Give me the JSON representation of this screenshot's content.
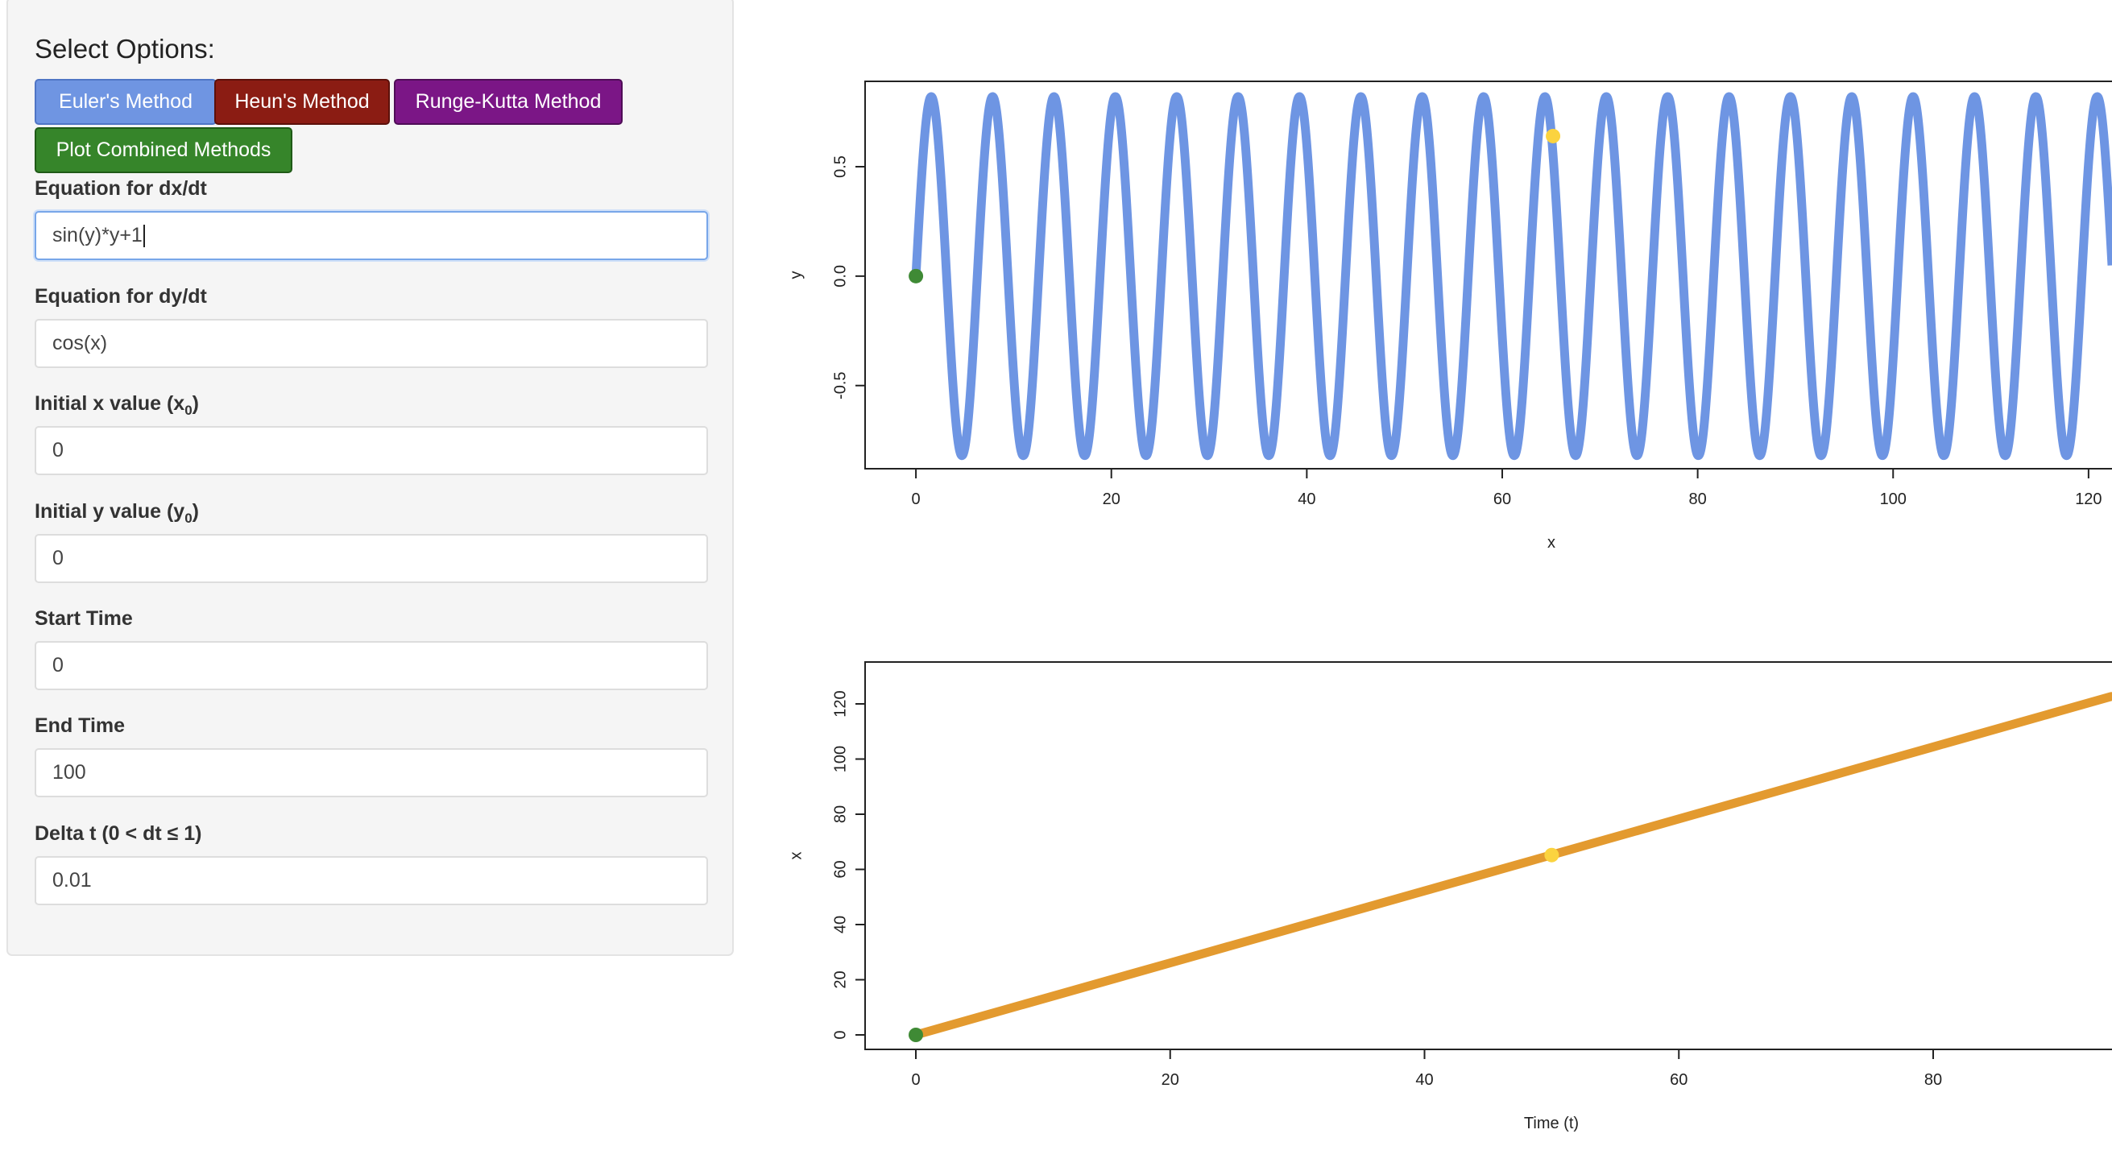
{
  "sidebar": {
    "title": "Select Options:",
    "buttons": {
      "euler": "Euler's Method",
      "heun": "Heun's Method",
      "rk": "Runge-Kutta Method",
      "combined": "Plot Combined Methods"
    },
    "fields": {
      "dxdt": {
        "label": "Equation for dx/dt",
        "value": "sin(y)*y+1"
      },
      "dydt": {
        "label": "Equation for dy/dt",
        "value": "cos(x)"
      },
      "x0": {
        "label_main": "Initial x value (x",
        "label_sub": "0",
        "label_end": ")",
        "value": "0"
      },
      "y0": {
        "label_main": "Initial y value (y",
        "label_sub": "0",
        "label_end": ")",
        "value": "0"
      },
      "start": {
        "label": "Start Time",
        "value": "0"
      },
      "end": {
        "label": "End Time",
        "value": "100"
      },
      "dt": {
        "label": "Delta t (0 < dt ≤ 1)",
        "value": "0.01"
      }
    }
  },
  "colors": {
    "euler": "#6f95e2",
    "heun": "#8b1c13",
    "rk": "#7b1686",
    "combined": "#36852a",
    "phase_line": "#6e95e3",
    "time_line": "#e39a2f",
    "start_point": "#3f8a35",
    "current_point": "#fbd33f"
  },
  "chart_data": [
    {
      "type": "line",
      "xlabel": "x",
      "ylabel": "y",
      "xticks": [
        0,
        20,
        40,
        60,
        80,
        100,
        120
      ],
      "yticks": [
        -0.5,
        0.0,
        0.5
      ],
      "ytick_labels": [
        "-0.5",
        "0.0",
        "0.5"
      ],
      "xlim": [
        -5.2,
        122.4
      ],
      "ylim": [
        -0.88,
        0.89
      ],
      "series": [
        {
          "description": "trajectory y vs x, oscillation amplitude ≈ 0.82 with period ≈ 6.28 in x",
          "amplitude": 0.82,
          "period": 6.28,
          "x_start": 0,
          "x_end": 122.4
        }
      ],
      "start_point": {
        "x": 0,
        "y": 0
      },
      "current_point": {
        "x": 65.2,
        "y": 0.64
      }
    },
    {
      "type": "line",
      "xlabel": "Time (t)",
      "ylabel": "x",
      "xticks": [
        0,
        20,
        40,
        60,
        80
      ],
      "yticks": [
        0,
        20,
        40,
        60,
        80,
        100,
        120
      ],
      "xlim": [
        -4,
        94
      ],
      "ylim": [
        -5,
        136
      ],
      "series": [
        {
          "x": [
            0,
            20,
            40,
            60,
            80,
            94
          ],
          "y": [
            0,
            26.1,
            52.2,
            78.3,
            104.4,
            122.7
          ]
        }
      ],
      "start_point": {
        "x": 0,
        "y": 0
      },
      "current_point": {
        "x": 50,
        "y": 65.2
      }
    }
  ]
}
